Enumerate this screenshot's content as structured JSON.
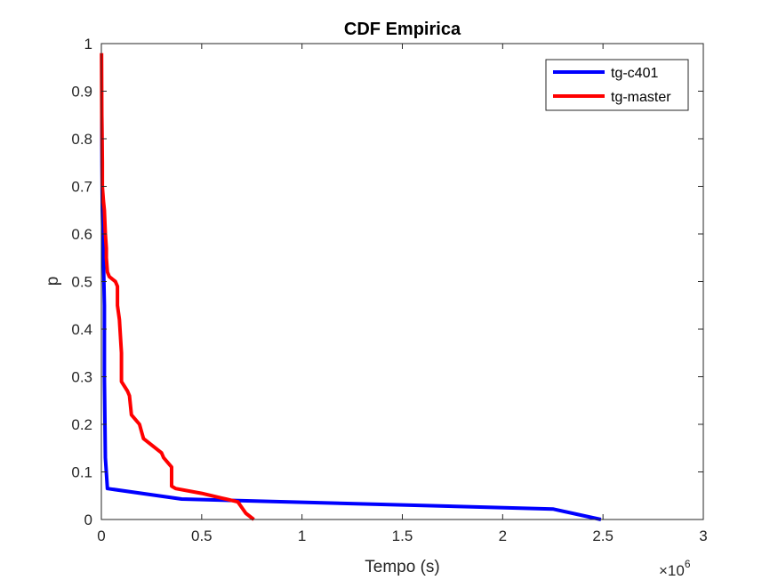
{
  "chart_data": {
    "type": "line",
    "title": "CDF Empirica",
    "xlabel": "Tempo (s)",
    "ylabel": "p",
    "x_exponent_label": "×10",
    "x_exponent_power": "6",
    "x_scale": 1000000,
    "xlim": [
      0,
      3
    ],
    "ylim": [
      0,
      1
    ],
    "x_ticks": [
      0,
      0.5,
      1,
      1.5,
      2,
      2.5,
      3
    ],
    "x_tick_labels": [
      "0",
      "0.5",
      "1",
      "1.5",
      "2",
      "2.5",
      "3"
    ],
    "y_ticks": [
      0,
      0.1,
      0.2,
      0.3,
      0.4,
      0.5,
      0.6,
      0.7,
      0.8,
      0.9,
      1
    ],
    "y_tick_labels": [
      "0",
      "0.1",
      "0.2",
      "0.3",
      "0.4",
      "0.5",
      "0.6",
      "0.7",
      "0.8",
      "0.9",
      "1"
    ],
    "grid": false,
    "legend_position": "top-right",
    "series": [
      {
        "name": "tg-c401",
        "color": "#0000ff",
        "x": [
          2.49,
          2.25,
          0.4,
          0.03,
          0.02,
          0.015,
          0.015,
          0.01,
          0.005,
          0.003,
          0.002
        ],
        "y": [
          0.0,
          0.022,
          0.043,
          0.065,
          0.13,
          0.3,
          0.45,
          0.55,
          0.65,
          0.75,
          0.85
        ]
      },
      {
        "name": "tg-master",
        "color": "#ff0000",
        "x": [
          0.76,
          0.72,
          0.7,
          0.68,
          0.6,
          0.5,
          0.37,
          0.35,
          0.35,
          0.31,
          0.3,
          0.21,
          0.2,
          0.19,
          0.15,
          0.14,
          0.13,
          0.1,
          0.1,
          0.09,
          0.08,
          0.08,
          0.07,
          0.04,
          0.03,
          0.025,
          0.025,
          0.02,
          0.015,
          0.01,
          0.005,
          0.005,
          0.002,
          0.001
        ],
        "y": [
          0.0,
          0.013,
          0.025,
          0.037,
          0.045,
          0.055,
          0.065,
          0.07,
          0.11,
          0.13,
          0.14,
          0.17,
          0.185,
          0.2,
          0.22,
          0.26,
          0.27,
          0.29,
          0.35,
          0.42,
          0.45,
          0.49,
          0.5,
          0.51,
          0.52,
          0.55,
          0.57,
          0.6,
          0.65,
          0.67,
          0.7,
          0.75,
          0.85,
          0.98
        ]
      }
    ]
  }
}
